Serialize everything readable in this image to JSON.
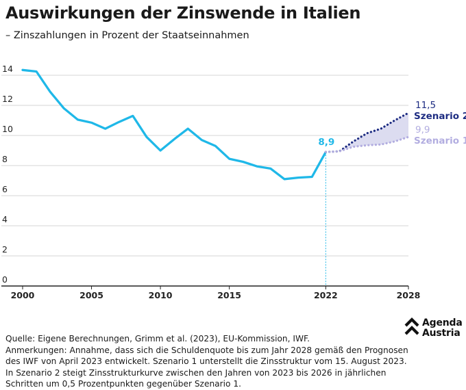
{
  "chart_data": {
    "type": "line",
    "title": "Auswirkungen der Zinswende in Italien",
    "subtitle": "– Zinszahlungen in Prozent der Staatseinnahmen",
    "xlim": [
      2000,
      2028
    ],
    "ylim": [
      0,
      15
    ],
    "x_ticks": [
      "2000",
      "2005",
      "2010",
      "2015",
      "2022",
      "2028"
    ],
    "y_ticks": [
      "0",
      "2",
      "4",
      "6",
      "8",
      "10",
      "12",
      "14"
    ],
    "grid": "horizontal",
    "series": [
      {
        "name": "",
        "style": "solid",
        "color": "#1fb8e8",
        "x": [
          2000,
          2001,
          2002,
          2003,
          2004,
          2005,
          2006,
          2007,
          2008,
          2009,
          2010,
          2011,
          2012,
          2013,
          2014,
          2015,
          2016,
          2017,
          2018,
          2019,
          2020,
          2021,
          2022
        ],
        "y": [
          14.35,
          14.25,
          12.9,
          11.8,
          11.05,
          10.85,
          10.45,
          10.9,
          11.3,
          9.9,
          9.0,
          9.75,
          10.45,
          9.7,
          9.3,
          8.45,
          8.25,
          7.95,
          7.8,
          7.1,
          7.2,
          7.25,
          8.9
        ]
      },
      {
        "name": "Szenario 2",
        "style": "dotted",
        "color": "#1d2c82",
        "x": [
          2022,
          2023,
          2024,
          2025,
          2026,
          2027,
          2028
        ],
        "y": [
          8.9,
          8.95,
          9.6,
          10.15,
          10.45,
          11.0,
          11.5
        ]
      },
      {
        "name": "Szenario 1",
        "style": "dotted",
        "color": "#b2ade0",
        "x": [
          2022,
          2023,
          2024,
          2025,
          2026,
          2027,
          2028
        ],
        "y": [
          8.9,
          8.95,
          9.25,
          9.35,
          9.4,
          9.6,
          9.9
        ]
      }
    ],
    "band_between": [
      "Szenario 1",
      "Szenario 2"
    ],
    "band_color": "#dcdcf0",
    "marker_line_x": 2022,
    "annotations": [
      {
        "text": "8,9",
        "color": "#1fb8e8"
      },
      {
        "text": "11,5",
        "color": "#1d2c82"
      },
      {
        "text": "9,9",
        "color": "#b2ade0"
      }
    ]
  },
  "footer": {
    "source": "Quelle: Eigene Berechnungen, Grimm et al. (2023), EU-Kommission, IWF.",
    "notes": "Anmerkungen: Annahme, dass sich die Schuldenquote bis zum Jahr 2028 gemäß den Prognosen des IWF von April 2023 entwickelt. Szenario 1 unterstellt die Zinsstruktur vom 15. August 2023. In Szenario 2 steigt Zinsstrukturkurve zwischen den Jahren von 2023 bis 2026 in jährlichen Schritten um 0,5 Prozentpunkten gegenüber Szenario 1."
  },
  "logo": {
    "line1": "Agenda",
    "line2": "Austria",
    "icon": "chevron-up-logo-icon"
  }
}
